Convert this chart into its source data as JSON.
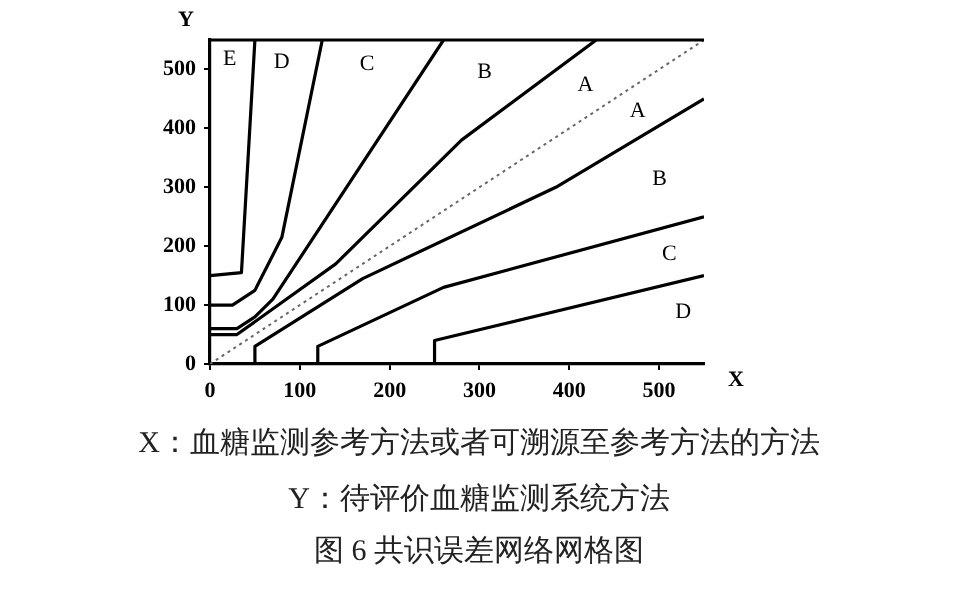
{
  "chart_data": {
    "type": "line",
    "title": "图 6 共识误差网络网格图",
    "xlabel": "X",
    "ylabel": "Y",
    "xlim": [
      0,
      550
    ],
    "ylim": [
      0,
      550
    ],
    "xticks": [
      0,
      100,
      200,
      300,
      400,
      500
    ],
    "yticks": [
      0,
      100,
      200,
      300,
      400,
      500
    ],
    "grid": false,
    "marker": "none",
    "line_style": "solid",
    "annotations": [
      "E",
      "D",
      "C",
      "B",
      "A",
      "A",
      "B",
      "C",
      "D",
      "X：血糖监测参考方法或者可溯源至参考方法的方法",
      "Y：待评价血糖监测系统方法"
    ],
    "series": [
      {
        "color": "#666666",
        "line_style": "dotted",
        "x": [
          0,
          550
        ],
        "values": [
          0,
          550
        ]
      },
      {
        "color": "#000000",
        "x": [
          0,
          30,
          140,
          280,
          430
        ],
        "values": [
          50,
          50,
          170,
          380,
          550
        ]
      },
      {
        "color": "#000000",
        "x": [
          50,
          50,
          170,
          385,
          550
        ],
        "values": [
          0,
          30,
          145,
          300,
          450
        ]
      },
      {
        "color": "#000000",
        "x": [
          0,
          30,
          50,
          70,
          260
        ],
        "values": [
          60,
          60,
          80,
          110,
          550
        ]
      },
      {
        "color": "#000000",
        "x": [
          120,
          120,
          260,
          550
        ],
        "values": [
          0,
          30,
          130,
          250
        ]
      },
      {
        "color": "#000000",
        "x": [
          0,
          25,
          50,
          80,
          125
        ],
        "values": [
          100,
          100,
          125,
          215,
          550
        ]
      },
      {
        "color": "#000000",
        "x": [
          250,
          250,
          550
        ],
        "values": [
          0,
          40,
          150
        ]
      },
      {
        "color": "#000000",
        "x": [
          0,
          35,
          50
        ],
        "values": [
          150,
          155,
          550
        ]
      }
    ]
  }
}
